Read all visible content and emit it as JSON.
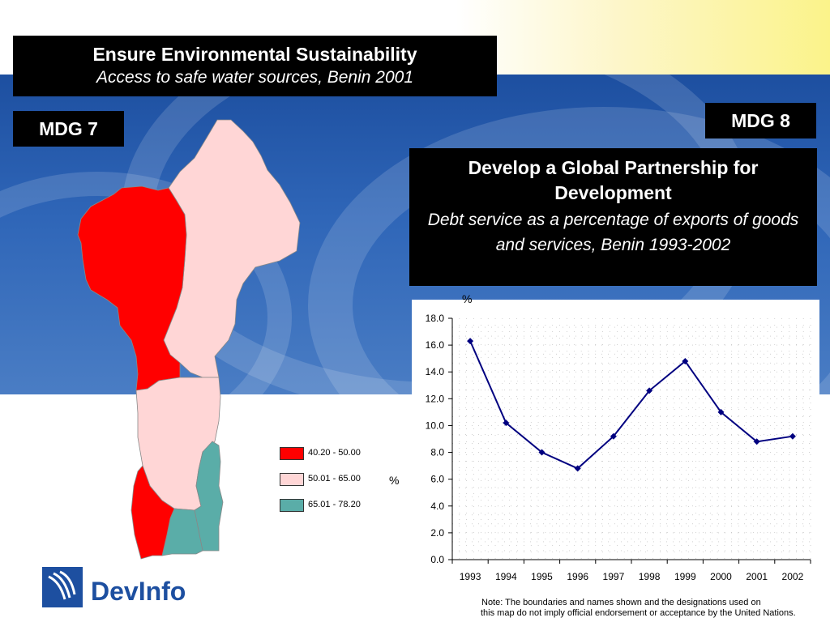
{
  "mdg7": {
    "tag": "MDG 7",
    "title": "Ensure Environmental Sustainability",
    "subtitle": "Access to safe water sources, Benin 2001"
  },
  "mdg8": {
    "tag": "MDG 8",
    "title": "Develop a Global Partnership for Development",
    "subtitle": "Debt service as a percentage of exports of goods and services, Benin 1993-2002"
  },
  "legend": {
    "unit": "%",
    "items": [
      {
        "label": "40.20 - 50.00",
        "color": "#ff0000"
      },
      {
        "label": "50.01 - 65.00",
        "color": "#ffd6d6"
      },
      {
        "label": "65.01 - 78.20",
        "color": "#5aada8"
      }
    ]
  },
  "chart_data": {
    "type": "line",
    "ylabel": "%",
    "x": [
      "1993",
      "1994",
      "1995",
      "1996",
      "1997",
      "1998",
      "1999",
      "2000",
      "2001",
      "2002"
    ],
    "series": [
      {
        "values": [
          16.3,
          10.2,
          8.0,
          6.8,
          9.2,
          12.6,
          14.8,
          11.0,
          8.8,
          9.2
        ]
      }
    ],
    "ylim": [
      0,
      18
    ],
    "yticks": [
      "0.0",
      "2.0",
      "4.0",
      "6.0",
      "8.0",
      "10.0",
      "12.0",
      "14.0",
      "16.0",
      "18.0"
    ],
    "grid": true,
    "line_color": "#000080"
  },
  "logo": {
    "text": "DevInfo"
  },
  "note": {
    "line1": "Note:  The boundaries and names shown and the designations used on",
    "line2": "this map do not imply official endorsement or acceptance by the United Nations."
  }
}
